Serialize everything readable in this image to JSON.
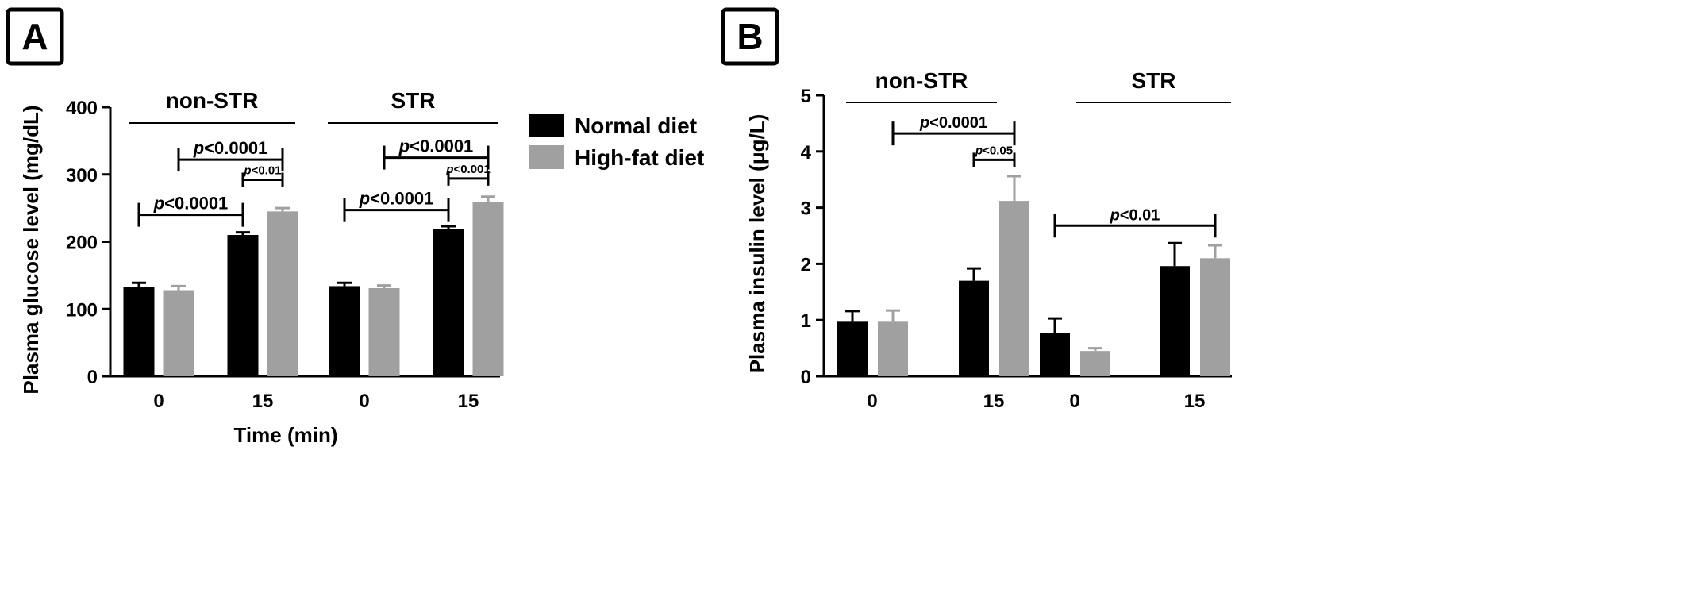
{
  "chart_data": [
    {
      "panel_label": "A",
      "type": "bar",
      "ylabel": "Plasma glucose level (mg/dL)",
      "xlabel": "Time (min)",
      "ylim": [
        0,
        400
      ],
      "yticks": [
        0,
        100,
        200,
        300,
        400
      ],
      "groups": [
        {
          "label": "non-STR",
          "categories": [
            "0",
            "15"
          ]
        },
        {
          "label": "STR",
          "categories": [
            "0",
            "15"
          ]
        }
      ],
      "series": [
        {
          "name": "Normal diet",
          "color": "#000000",
          "values": [
            133,
            210,
            134,
            219
          ],
          "errors": [
            6,
            4,
            5,
            4
          ]
        },
        {
          "name": "High-fat diet",
          "color": "#a0a0a0",
          "values": [
            128,
            245,
            131,
            259
          ],
          "errors": [
            6,
            5,
            4,
            8
          ]
        }
      ],
      "annotations": [
        {
          "text": "<0.0001",
          "from": {
            "group": 0,
            "cat": 0,
            "series": 0
          },
          "to": {
            "group": 0,
            "cat": 1,
            "series": 0
          },
          "y": 240,
          "size": "large"
        },
        {
          "text": "<0.0001",
          "from": {
            "group": 0,
            "cat": 0,
            "series": 1
          },
          "to": {
            "group": 0,
            "cat": 1,
            "series": 1
          },
          "y": 322,
          "size": "large"
        },
        {
          "text": "<0.01",
          "from": {
            "group": 0,
            "cat": 1,
            "series": 0
          },
          "to": {
            "group": 0,
            "cat": 1,
            "series": 1
          },
          "y": 292,
          "size": "small"
        },
        {
          "text": "<0.0001",
          "from": {
            "group": 1,
            "cat": 0,
            "series": 0
          },
          "to": {
            "group": 1,
            "cat": 1,
            "series": 0
          },
          "y": 247,
          "size": "large"
        },
        {
          "text": "<0.0001",
          "from": {
            "group": 1,
            "cat": 0,
            "series": 1
          },
          "to": {
            "group": 1,
            "cat": 1,
            "series": 1
          },
          "y": 325,
          "size": "large"
        },
        {
          "text": "<0.001",
          "from": {
            "group": 1,
            "cat": 1,
            "series": 0
          },
          "to": {
            "group": 1,
            "cat": 1,
            "series": 1
          },
          "y": 294,
          "size": "small"
        }
      ],
      "annotation_prefix": "p",
      "legend": {
        "position": "right",
        "entries": [
          "Normal diet",
          "High-fat diet"
        ]
      }
    },
    {
      "panel_label": "B",
      "type": "bar",
      "ylabel": "Plasma insulin level (μg/L)",
      "xlabel": "",
      "ylim": [
        0,
        5
      ],
      "yticks": [
        0,
        1,
        2,
        3,
        4,
        5
      ],
      "groups": [
        {
          "label": "non-STR",
          "categories": [
            "0",
            "15"
          ]
        },
        {
          "label": "STR",
          "categories": [
            "0",
            "15"
          ]
        }
      ],
      "series": [
        {
          "name": "Normal diet",
          "color": "#000000",
          "values": [
            0.97,
            1.7,
            0.77,
            1.96
          ],
          "errors": [
            0.19,
            0.22,
            0.26,
            0.41
          ]
        },
        {
          "name": "High-fat diet",
          "color": "#a0a0a0",
          "values": [
            0.97,
            3.12,
            0.45,
            2.1
          ],
          "errors": [
            0.2,
            0.44,
            0.05,
            0.23
          ]
        }
      ],
      "annotations": [
        {
          "text": "<0.0001",
          "from": {
            "group": 0,
            "cat": 0,
            "series": 1
          },
          "to": {
            "group": 0,
            "cat": 1,
            "series": 1
          },
          "y": 4.32,
          "size": "medium"
        },
        {
          "text": "<0.05",
          "from": {
            "group": 0,
            "cat": 1,
            "series": 0
          },
          "to": {
            "group": 0,
            "cat": 1,
            "series": 1
          },
          "y": 3.85,
          "size": "small"
        },
        {
          "text": "<0.01",
          "from": {
            "group": 1,
            "cat": 0,
            "series": 0
          },
          "to": {
            "group": 1,
            "cat": 1,
            "series": 1
          },
          "y": 2.68,
          "size": "medium"
        }
      ],
      "annotation_prefix": "p"
    }
  ]
}
